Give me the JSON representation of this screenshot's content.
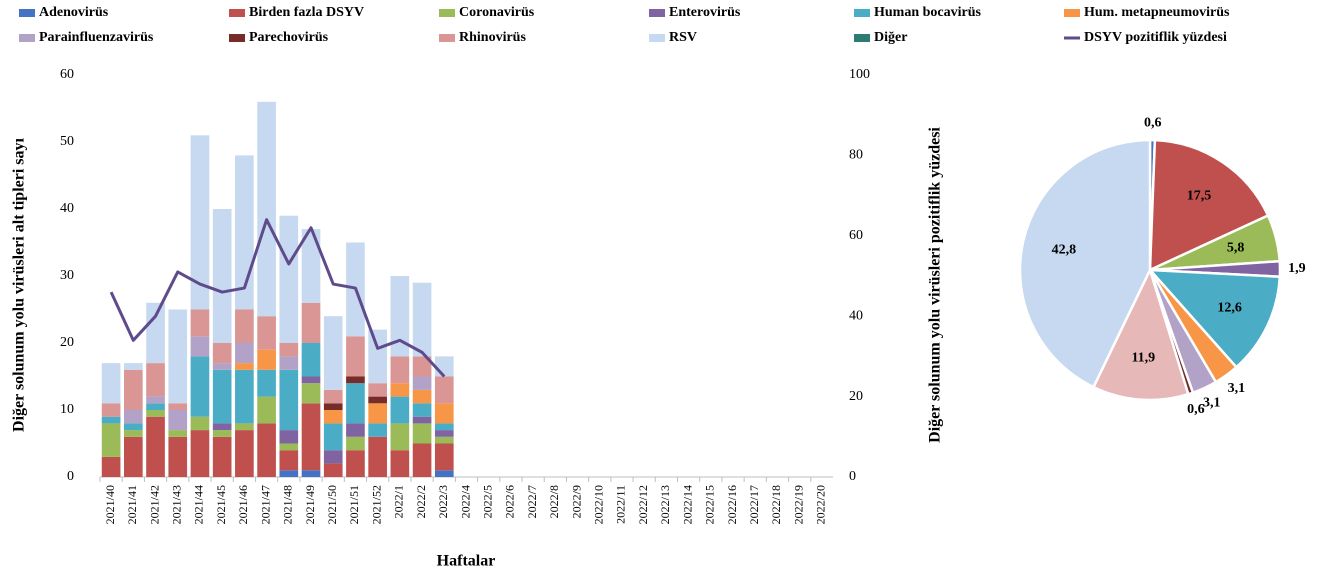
{
  "chart_data": [
    {
      "type": "bar",
      "x_label": "Haftalar",
      "y_label": "Diğer solunum yolu virüsleri alt tipleri sayı",
      "categories": [
        "2021/40",
        "2021/41",
        "2021/42",
        "2021/43",
        "2021/44",
        "2021/45",
        "2021/46",
        "2021/47",
        "2021/48",
        "2021/49",
        "2021/50",
        "2021/51",
        "2021/52",
        "2022/1",
        "2022/2",
        "2022/3",
        "2022/4",
        "2022/5",
        "2022/6",
        "2022/7",
        "2022/8",
        "2022/9",
        "2022/10",
        "2022/11",
        "2022/12",
        "2022/13",
        "2022/14",
        "2022/15",
        "2022/16",
        "2022/17",
        "2022/18",
        "2022/19",
        "2022/20"
      ],
      "ylim": [
        0,
        60
      ],
      "yticks": [
        0,
        10,
        20,
        30,
        40,
        50,
        60
      ],
      "y2lim": [
        0,
        100
      ],
      "y2ticks": [
        0,
        20,
        40,
        60,
        80,
        100
      ],
      "stacked": true,
      "series": [
        {
          "name": "Adenovirüs",
          "color": "#4472c4",
          "values": [
            0,
            0,
            0,
            0,
            0,
            0,
            0,
            0,
            1,
            1,
            0,
            0,
            0,
            0,
            0,
            1,
            null,
            null,
            null,
            null,
            null,
            null,
            null,
            null,
            null,
            null,
            null,
            null,
            null,
            null,
            null,
            null,
            null
          ]
        },
        {
          "name": "Birden fazla DSYV",
          "color": "#c0504d",
          "values": [
            3,
            6,
            9,
            6,
            7,
            6,
            7,
            8,
            3,
            10,
            2,
            4,
            6,
            4,
            5,
            4,
            null,
            null,
            null,
            null,
            null,
            null,
            null,
            null,
            null,
            null,
            null,
            null,
            null,
            null,
            null,
            null,
            null
          ]
        },
        {
          "name": "Coronavirüs",
          "color": "#9bbb59",
          "values": [
            5,
            1,
            1,
            1,
            2,
            1,
            1,
            4,
            1,
            3,
            0,
            2,
            0,
            4,
            3,
            1,
            null,
            null,
            null,
            null,
            null,
            null,
            null,
            null,
            null,
            null,
            null,
            null,
            null,
            null,
            null,
            null,
            null
          ]
        },
        {
          "name": "Enterovirüs",
          "color": "#8064a2",
          "values": [
            0,
            0,
            0,
            0,
            0,
            1,
            0,
            0,
            2,
            1,
            2,
            2,
            0,
            0,
            1,
            1,
            null,
            null,
            null,
            null,
            null,
            null,
            null,
            null,
            null,
            null,
            null,
            null,
            null,
            null,
            null,
            null,
            null
          ]
        },
        {
          "name": "Human bocavirüs",
          "color": "#4bacc6",
          "values": [
            1,
            1,
            1,
            0,
            9,
            8,
            8,
            4,
            9,
            5,
            4,
            6,
            2,
            4,
            2,
            1,
            null,
            null,
            null,
            null,
            null,
            null,
            null,
            null,
            null,
            null,
            null,
            null,
            null,
            null,
            null,
            null,
            null
          ]
        },
        {
          "name": "Hum. metapneumovirüs",
          "color": "#f79646",
          "values": [
            0,
            0,
            0,
            0,
            0,
            0,
            1,
            3,
            0,
            0,
            2,
            0,
            3,
            2,
            2,
            3,
            null,
            null,
            null,
            null,
            null,
            null,
            null,
            null,
            null,
            null,
            null,
            null,
            null,
            null,
            null,
            null,
            null
          ]
        },
        {
          "name": "Parainfluenzavirüs",
          "color": "#b3a2c7",
          "values": [
            0,
            2,
            1,
            3,
            3,
            1,
            3,
            0,
            2,
            0,
            0,
            0,
            0,
            0,
            2,
            0,
            null,
            null,
            null,
            null,
            null,
            null,
            null,
            null,
            null,
            null,
            null,
            null,
            null,
            null,
            null,
            null,
            null
          ]
        },
        {
          "name": "Parechovirüs",
          "color": "#772c2a",
          "values": [
            0,
            0,
            0,
            0,
            0,
            0,
            0,
            0,
            0,
            0,
            1,
            1,
            1,
            0,
            0,
            0,
            null,
            null,
            null,
            null,
            null,
            null,
            null,
            null,
            null,
            null,
            null,
            null,
            null,
            null,
            null,
            null,
            null
          ]
        },
        {
          "name": "Rhinovirüs",
          "color": "#d99694",
          "values": [
            2,
            6,
            5,
            1,
            4,
            3,
            5,
            5,
            2,
            6,
            2,
            6,
            2,
            4,
            3,
            4,
            null,
            null,
            null,
            null,
            null,
            null,
            null,
            null,
            null,
            null,
            null,
            null,
            null,
            null,
            null,
            null,
            null
          ]
        },
        {
          "name": "RSV",
          "color": "#c6d9f0",
          "values": [
            6,
            1,
            9,
            14,
            26,
            20,
            23,
            32,
            19,
            11,
            11,
            14,
            8,
            12,
            11,
            3,
            null,
            null,
            null,
            null,
            null,
            null,
            null,
            null,
            null,
            null,
            null,
            null,
            null,
            null,
            null,
            null,
            null
          ]
        },
        {
          "name": "Diğer",
          "color": "#2c7c73",
          "values": [
            0,
            0,
            0,
            0,
            0,
            0,
            0,
            0,
            0,
            0,
            0,
            0,
            0,
            0,
            0,
            0,
            null,
            null,
            null,
            null,
            null,
            null,
            null,
            null,
            null,
            null,
            null,
            null,
            null,
            null,
            null,
            null,
            null
          ]
        },
        {
          "name": "DSYV pozitiflik yüzdesi",
          "color": "#5f4b8b",
          "type": "line",
          "axis": "y2",
          "values": [
            46,
            34,
            40,
            51,
            48,
            46,
            47,
            64,
            53,
            62,
            48,
            47,
            32,
            34,
            31,
            25,
            null,
            null,
            null,
            null,
            null,
            null,
            null,
            null,
            null,
            null,
            null,
            null,
            null,
            null,
            null,
            null,
            null
          ]
        }
      ]
    },
    {
      "type": "pie",
      "y_label": "Diğer solunum yolu virüsleri pozitiflik yüzdesi",
      "values": [
        0.6,
        17.5,
        5.8,
        1.9,
        12.6,
        3.1,
        3.1,
        0.6,
        11.9,
        42.8
      ],
      "value_labels": [
        "0,6",
        "17,5",
        "5,8",
        "1,9",
        "12,6",
        "3,1",
        "3,1",
        "0,6",
        "11,9",
        "42,8"
      ],
      "colors": [
        "#4472c4",
        "#c0504d",
        "#9bbb59",
        "#8064a2",
        "#4bacc6",
        "#f79646",
        "#b3a2c7",
        "#772c2a",
        "#e6b9b8",
        "#c6d9f0"
      ]
    }
  ]
}
